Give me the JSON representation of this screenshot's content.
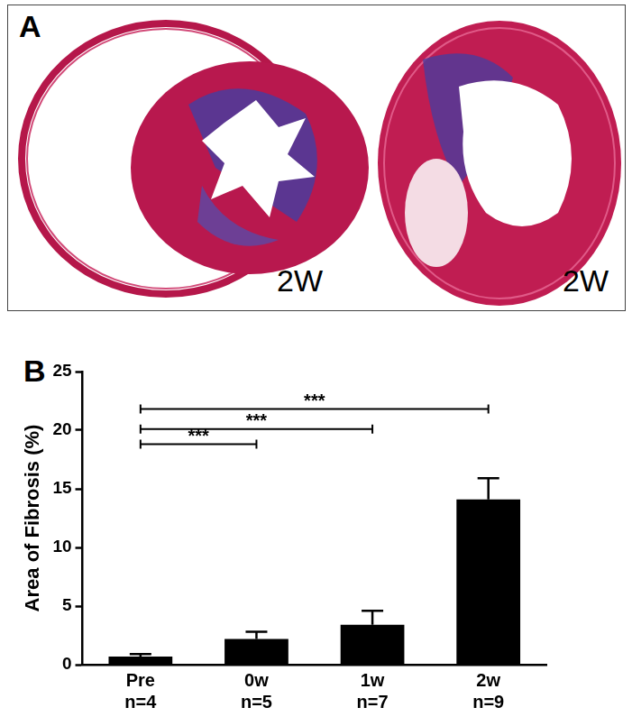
{
  "panel_a": {
    "label": "A",
    "captions": [
      "2W",
      "2W"
    ]
  },
  "chart_data": {
    "type": "bar",
    "label": "B",
    "y_label": "Area of Fibrosis (%)",
    "categories": [
      [
        "Pre",
        "n=4"
      ],
      [
        "0w",
        "n=5"
      ],
      [
        "1w",
        "n=7"
      ],
      [
        "2w",
        "n=9"
      ]
    ],
    "values": [
      0.7,
      2.2,
      3.4,
      14.1
    ],
    "errors": [
      0.2,
      0.6,
      1.2,
      1.8
    ],
    "color": "#000000",
    "ylim": [
      0,
      25
    ],
    "yticks": [
      0,
      5,
      10,
      15,
      20,
      25
    ],
    "grid": false,
    "annotations": [
      {
        "from": 0,
        "to": 1,
        "y": 18.8,
        "label": "***"
      },
      {
        "from": 0,
        "to": 2,
        "y": 20.1,
        "label": "***"
      },
      {
        "from": 0,
        "to": 3,
        "y": 21.8,
        "label": "***"
      }
    ]
  }
}
